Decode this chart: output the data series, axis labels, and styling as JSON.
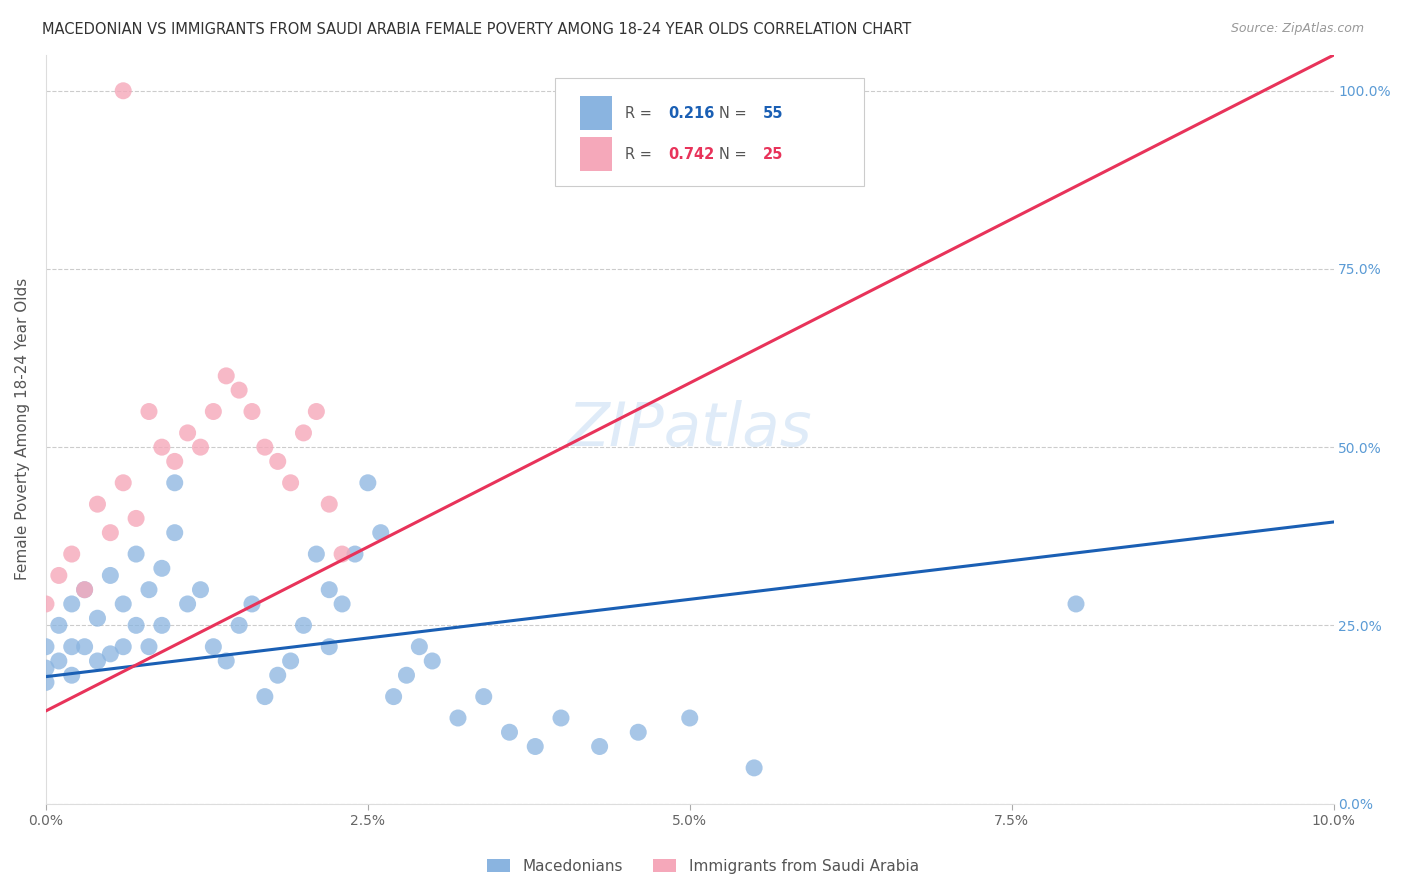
{
  "title": "MACEDONIAN VS IMMIGRANTS FROM SAUDI ARABIA FEMALE POVERTY AMONG 18-24 YEAR OLDS CORRELATION CHART",
  "source": "Source: ZipAtlas.com",
  "ylabel": "Female Poverty Among 18-24 Year Olds",
  "xlim": [
    0.0,
    0.1
  ],
  "ylim": [
    0.0,
    1.05
  ],
  "xtick_labels": [
    "0.0%",
    "",
    "2.5%",
    "",
    "5.0%",
    "",
    "7.5%",
    "",
    "10.0%"
  ],
  "xtick_vals": [
    0.0,
    0.0125,
    0.025,
    0.0375,
    0.05,
    0.0625,
    0.075,
    0.0875,
    0.1
  ],
  "xtick_display": [
    "0.0%",
    "2.5%",
    "5.0%",
    "7.5%",
    "10.0%"
  ],
  "xtick_display_vals": [
    0.0,
    0.025,
    0.05,
    0.075,
    0.1
  ],
  "ytick_labels_right": [
    "0.0%",
    "25.0%",
    "50.0%",
    "75.0%",
    "100.0%"
  ],
  "ytick_vals": [
    0.0,
    0.25,
    0.5,
    0.75,
    1.0
  ],
  "macedonian_color": "#8ab4e0",
  "saudi_color": "#f5a8ba",
  "macedonian_line_color": "#1a5fb4",
  "saudi_line_color": "#e8335a",
  "macedonian_R": 0.216,
  "macedonian_N": 55,
  "saudi_R": 0.742,
  "saudi_N": 25,
  "mac_line_x0": 0.0,
  "mac_line_y0": 0.178,
  "mac_line_x1": 0.1,
  "mac_line_y1": 0.395,
  "sau_line_x0": 0.0,
  "sau_line_y0": 0.13,
  "sau_line_x1": 0.1,
  "sau_line_y1": 1.05,
  "macedonian_x": [
    0.0,
    0.0,
    0.0,
    0.001,
    0.001,
    0.002,
    0.002,
    0.002,
    0.003,
    0.003,
    0.004,
    0.004,
    0.005,
    0.005,
    0.006,
    0.006,
    0.007,
    0.007,
    0.008,
    0.008,
    0.009,
    0.009,
    0.01,
    0.01,
    0.011,
    0.012,
    0.013,
    0.014,
    0.015,
    0.016,
    0.017,
    0.018,
    0.019,
    0.02,
    0.021,
    0.022,
    0.022,
    0.023,
    0.024,
    0.025,
    0.026,
    0.027,
    0.028,
    0.029,
    0.03,
    0.032,
    0.034,
    0.036,
    0.038,
    0.04,
    0.043,
    0.046,
    0.05,
    0.055,
    0.08
  ],
  "macedonian_y": [
    0.22,
    0.19,
    0.17,
    0.25,
    0.2,
    0.28,
    0.22,
    0.18,
    0.3,
    0.22,
    0.26,
    0.2,
    0.32,
    0.21,
    0.28,
    0.22,
    0.35,
    0.25,
    0.3,
    0.22,
    0.33,
    0.25,
    0.45,
    0.38,
    0.28,
    0.3,
    0.22,
    0.2,
    0.25,
    0.28,
    0.15,
    0.18,
    0.2,
    0.25,
    0.35,
    0.3,
    0.22,
    0.28,
    0.35,
    0.45,
    0.38,
    0.15,
    0.18,
    0.22,
    0.2,
    0.12,
    0.15,
    0.1,
    0.08,
    0.12,
    0.08,
    0.1,
    0.12,
    0.05,
    0.28
  ],
  "saudi_x": [
    0.0,
    0.001,
    0.002,
    0.003,
    0.004,
    0.005,
    0.006,
    0.007,
    0.008,
    0.009,
    0.01,
    0.011,
    0.012,
    0.013,
    0.014,
    0.015,
    0.016,
    0.017,
    0.018,
    0.019,
    0.02,
    0.021,
    0.022,
    0.023,
    0.006
  ],
  "saudi_y": [
    0.28,
    0.32,
    0.35,
    0.3,
    0.42,
    0.38,
    0.45,
    0.4,
    0.55,
    0.5,
    0.48,
    0.52,
    0.5,
    0.55,
    0.6,
    0.58,
    0.55,
    0.5,
    0.48,
    0.45,
    0.52,
    0.55,
    0.42,
    0.35,
    1.0
  ]
}
